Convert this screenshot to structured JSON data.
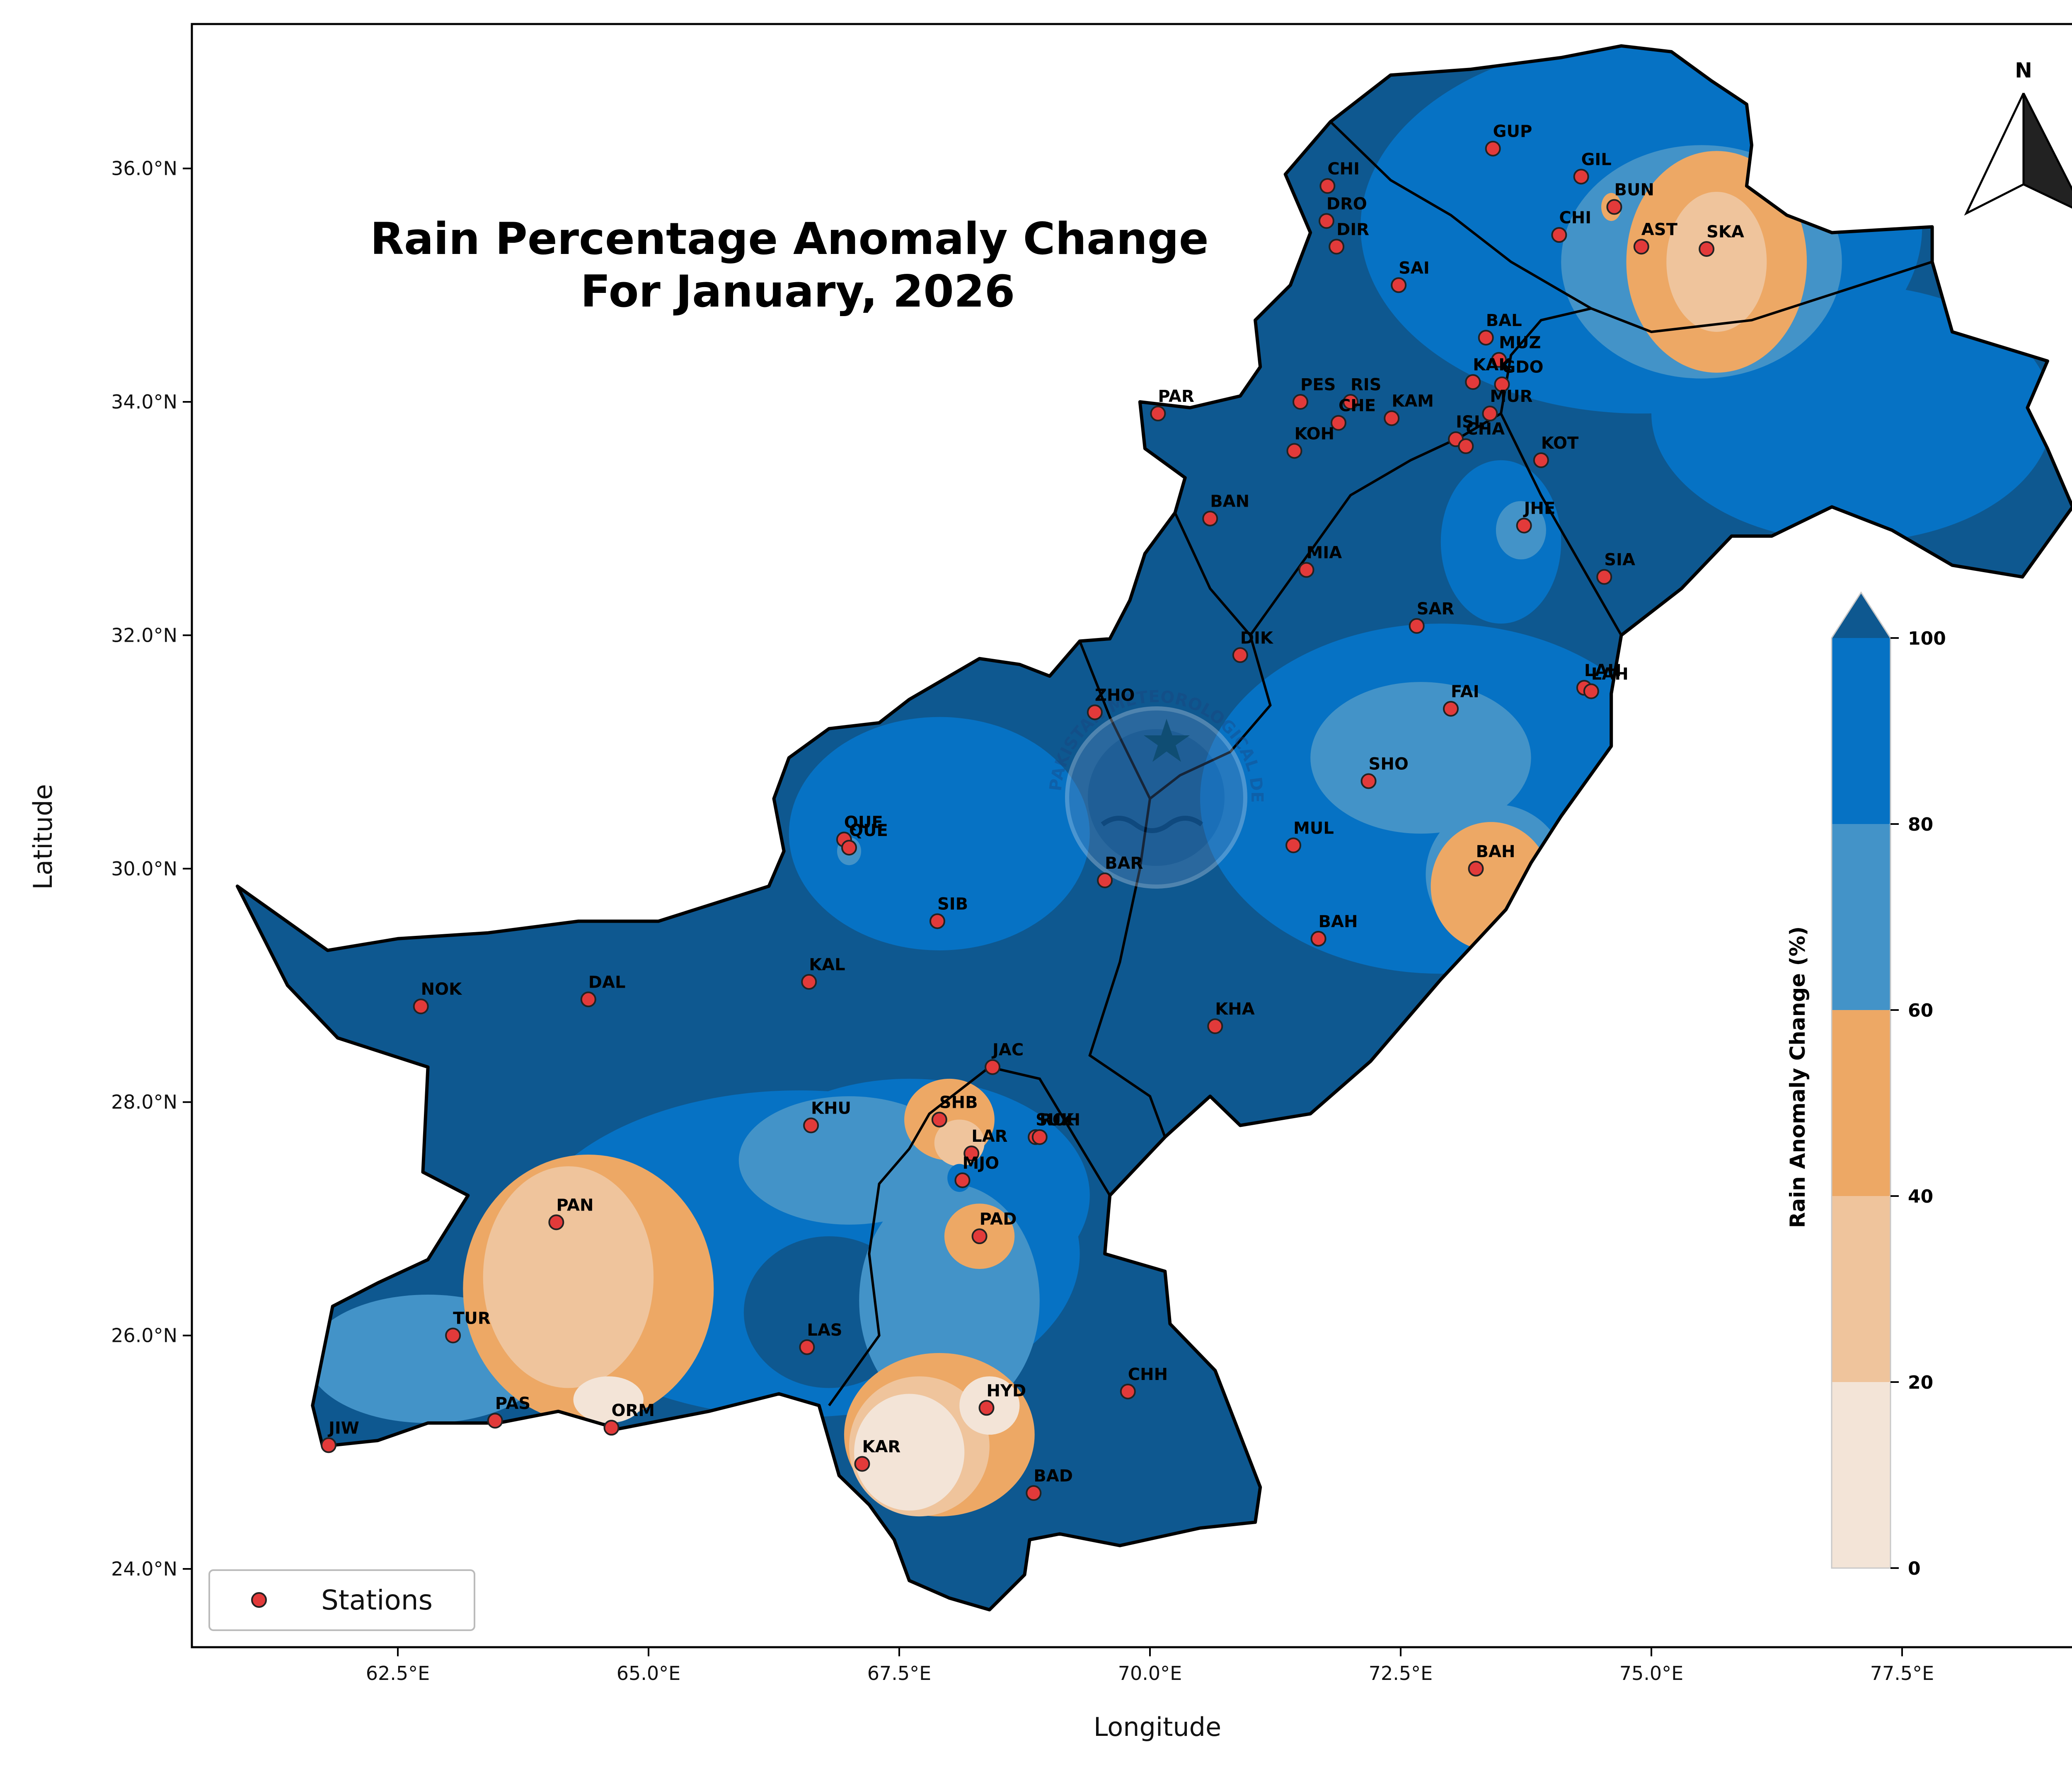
{
  "title": {
    "line1": "Rain Percentage Anomaly Change",
    "line2": "For January, 2026"
  },
  "axes": {
    "xlabel": "Longitude",
    "ylabel": "Latitude",
    "xlim": [
      60.6,
      79.5
    ],
    "ylim": [
      23.3,
      37.3
    ],
    "xticks": [
      {
        "value": 62.5,
        "label": "62.5°E"
      },
      {
        "value": 65.0,
        "label": "65.0°E"
      },
      {
        "value": 67.5,
        "label": "67.5°E"
      },
      {
        "value": 70.0,
        "label": "70.0°E"
      },
      {
        "value": 72.5,
        "label": "72.5°E"
      },
      {
        "value": 75.0,
        "label": "75.0°E"
      },
      {
        "value": 77.5,
        "label": "77.5°E"
      }
    ],
    "yticks": [
      {
        "value": 24.0,
        "label": "24.0°N"
      },
      {
        "value": 26.0,
        "label": "26.0°N"
      },
      {
        "value": 28.0,
        "label": "28.0°N"
      },
      {
        "value": 30.0,
        "label": "30.0°N"
      },
      {
        "value": 32.0,
        "label": "32.0°N"
      },
      {
        "value": 34.0,
        "label": "34.0°N"
      },
      {
        "value": 36.0,
        "label": "36.0°N"
      }
    ]
  },
  "colorbar": {
    "title": "Rain Anomaly Change (%)",
    "levels": [
      {
        "label": "0",
        "from": 0,
        "to": 20,
        "color": "#f3e4d7"
      },
      {
        "label": "20",
        "from": 20,
        "to": 40,
        "color": "#efc49c"
      },
      {
        "label": "40",
        "from": 40,
        "to": 60,
        "color": "#eda865"
      },
      {
        "label": "60",
        "from": 60,
        "to": 80,
        "color": "#4393c8"
      },
      {
        "label": "80",
        "from": 80,
        "to": 100,
        "color": "#0672c4"
      },
      {
        "label": "100",
        "from": 100,
        "to": null,
        "color": "#0e5890"
      }
    ]
  },
  "colors": {
    "extreme": "#0e5890",
    "band_80_100": "#0672c4",
    "band_60_80": "#4393c8",
    "band_40_60": "#eda865",
    "band_20_40": "#efc49c",
    "band_0_20": "#f3e4d7",
    "station_fill": "#e23a3a",
    "border": "#000000"
  },
  "legend": {
    "label": "Stations",
    "position": "lower-left"
  },
  "north_arrow": {
    "label": "N"
  },
  "watermark": {
    "arc_text": "PAKISTAN METEOROLOGICAL DEPARTMENT"
  },
  "stations": [
    {
      "code": "GUP",
      "lon": 73.42,
      "lat": 36.17
    },
    {
      "code": "GIL",
      "lon": 74.3,
      "lat": 35.93
    },
    {
      "code": "CHI",
      "lon": 71.77,
      "lat": 35.85
    },
    {
      "code": "BUN",
      "lon": 74.63,
      "lat": 35.67
    },
    {
      "code": "DRO",
      "lon": 71.76,
      "lat": 35.55
    },
    {
      "code": "CHI",
      "lon": 74.08,
      "lat": 35.43
    },
    {
      "code": "DIR",
      "lon": 71.86,
      "lat": 35.33
    },
    {
      "code": "AST",
      "lon": 74.9,
      "lat": 35.33
    },
    {
      "code": "SKA",
      "lon": 75.55,
      "lat": 35.31
    },
    {
      "code": "SAI",
      "lon": 72.48,
      "lat": 35.0
    },
    {
      "code": "BAL",
      "lon": 73.35,
      "lat": 34.55
    },
    {
      "code": "MUZ",
      "lon": 73.48,
      "lat": 34.36
    },
    {
      "code": "KAK",
      "lon": 73.22,
      "lat": 34.17
    },
    {
      "code": "GDO",
      "lon": 73.51,
      "lat": 34.15
    },
    {
      "code": "PES",
      "lon": 71.5,
      "lat": 34.0
    },
    {
      "code": "RIS",
      "lon": 72.0,
      "lat": 34.0
    },
    {
      "code": "MUR",
      "lon": 73.39,
      "lat": 33.9
    },
    {
      "code": "PAR",
      "lon": 70.08,
      "lat": 33.9
    },
    {
      "code": "KAM",
      "lon": 72.41,
      "lat": 33.86
    },
    {
      "code": "CHE",
      "lon": 71.88,
      "lat": 33.82
    },
    {
      "code": "ISL",
      "lon": 73.05,
      "lat": 33.68
    },
    {
      "code": "CHA",
      "lon": 73.15,
      "lat": 33.62
    },
    {
      "code": "KOH",
      "lon": 71.44,
      "lat": 33.58
    },
    {
      "code": "KOT",
      "lon": 73.9,
      "lat": 33.5
    },
    {
      "code": "BAN",
      "lon": 70.6,
      "lat": 33.0
    },
    {
      "code": "JHE",
      "lon": 73.73,
      "lat": 32.94
    },
    {
      "code": "MIA",
      "lon": 71.56,
      "lat": 32.56
    },
    {
      "code": "SIA",
      "lon": 74.53,
      "lat": 32.5
    },
    {
      "code": "SAR",
      "lon": 72.66,
      "lat": 32.08
    },
    {
      "code": "DIK",
      "lon": 70.9,
      "lat": 31.83
    },
    {
      "code": "LAH",
      "lon": 74.33,
      "lat": 31.55
    },
    {
      "code": "LAH",
      "lon": 74.4,
      "lat": 31.52
    },
    {
      "code": "FAI",
      "lon": 73.0,
      "lat": 31.37
    },
    {
      "code": "ZHO",
      "lon": 69.45,
      "lat": 31.34
    },
    {
      "code": "SHO",
      "lon": 72.18,
      "lat": 30.75
    },
    {
      "code": "QUE",
      "lon": 66.95,
      "lat": 30.25
    },
    {
      "code": "QUE",
      "lon": 67.0,
      "lat": 30.18
    },
    {
      "code": "MUL",
      "lon": 71.43,
      "lat": 30.2
    },
    {
      "code": "BAH",
      "lon": 73.25,
      "lat": 30.0
    },
    {
      "code": "BAR",
      "lon": 69.55,
      "lat": 29.9
    },
    {
      "code": "SIB",
      "lon": 67.88,
      "lat": 29.55
    },
    {
      "code": "BAH",
      "lon": 71.68,
      "lat": 29.4
    },
    {
      "code": "KAL",
      "lon": 66.6,
      "lat": 29.03
    },
    {
      "code": "DAL",
      "lon": 64.4,
      "lat": 28.88
    },
    {
      "code": "NOK",
      "lon": 62.73,
      "lat": 28.82
    },
    {
      "code": "KHA",
      "lon": 70.65,
      "lat": 28.65
    },
    {
      "code": "JAC",
      "lon": 68.43,
      "lat": 28.3
    },
    {
      "code": "SHB",
      "lon": 67.9,
      "lat": 27.85
    },
    {
      "code": "KHU",
      "lon": 66.62,
      "lat": 27.8
    },
    {
      "code": "SUK",
      "lon": 68.86,
      "lat": 27.7
    },
    {
      "code": "ROH",
      "lon": 68.9,
      "lat": 27.7
    },
    {
      "code": "LAR",
      "lon": 68.22,
      "lat": 27.56
    },
    {
      "code": "MJO",
      "lon": 68.13,
      "lat": 27.33
    },
    {
      "code": "PAN",
      "lon": 64.08,
      "lat": 26.97
    },
    {
      "code": "PAD",
      "lon": 68.3,
      "lat": 26.85
    },
    {
      "code": "TUR",
      "lon": 63.05,
      "lat": 26.0
    },
    {
      "code": "LAS",
      "lon": 66.58,
      "lat": 25.9
    },
    {
      "code": "CHH",
      "lon": 69.78,
      "lat": 25.52
    },
    {
      "code": "HYD",
      "lon": 68.37,
      "lat": 25.38
    },
    {
      "code": "PAS",
      "lon": 63.47,
      "lat": 25.27
    },
    {
      "code": "ORM",
      "lon": 64.63,
      "lat": 25.21
    },
    {
      "code": "JIW",
      "lon": 61.81,
      "lat": 25.06
    },
    {
      "code": "KAR",
      "lon": 67.13,
      "lat": 24.9
    },
    {
      "code": "BAD",
      "lon": 68.84,
      "lat": 24.65
    }
  ]
}
